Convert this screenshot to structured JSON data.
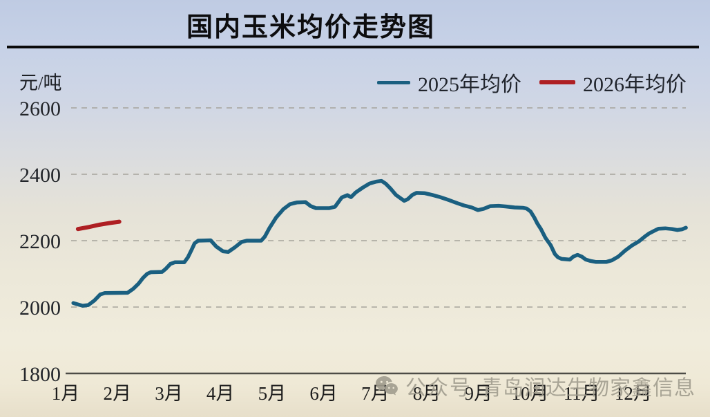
{
  "title": "国内玉米均价走势图",
  "y_axis_unit": "元/吨",
  "legend": [
    {
      "label": "2025年均价",
      "color": "#1a5f80"
    },
    {
      "label": "2026年均价",
      "color": "#ae1f23"
    }
  ],
  "watermark": {
    "icon": "wechat-icon",
    "label": "公众号",
    "text": "青岛润达生物家鑫信息",
    "color": "#a19d8f"
  },
  "chart_data": {
    "type": "line",
    "title": "国内玉米均价走势图",
    "ylabel": "元/吨",
    "ylim": [
      1800,
      2600
    ],
    "yticks": [
      1800,
      2000,
      2200,
      2400,
      2600
    ],
    "x_categories": [
      "1月",
      "2月",
      "3月",
      "4月",
      "5月",
      "6月",
      "7月",
      "8月",
      "9月",
      "10月",
      "11月",
      "12月"
    ],
    "grid": "dashed-horizontal",
    "legend_position": "top-right",
    "series": [
      {
        "name": "2025年均价",
        "color": "#1a5f80",
        "width": 5.5,
        "points": [
          [
            1.15,
            2012
          ],
          [
            1.24,
            2008
          ],
          [
            1.33,
            2004
          ],
          [
            1.44,
            2006
          ],
          [
            1.56,
            2020
          ],
          [
            1.67,
            2038
          ],
          [
            1.76,
            2042
          ],
          [
            2.2,
            2043
          ],
          [
            2.31,
            2055
          ],
          [
            2.41,
            2070
          ],
          [
            2.5,
            2088
          ],
          [
            2.58,
            2100
          ],
          [
            2.65,
            2105
          ],
          [
            2.87,
            2106
          ],
          [
            2.94,
            2115
          ],
          [
            3.03,
            2130
          ],
          [
            3.12,
            2135
          ],
          [
            3.3,
            2135
          ],
          [
            3.37,
            2150
          ],
          [
            3.44,
            2172
          ],
          [
            3.5,
            2192
          ],
          [
            3.57,
            2200
          ],
          [
            3.81,
            2201
          ],
          [
            3.92,
            2182
          ],
          [
            4.05,
            2168
          ],
          [
            4.15,
            2166
          ],
          [
            4.28,
            2180
          ],
          [
            4.41,
            2196
          ],
          [
            4.51,
            2200
          ],
          [
            4.79,
            2200
          ],
          [
            4.86,
            2212
          ],
          [
            4.95,
            2238
          ],
          [
            5.08,
            2270
          ],
          [
            5.22,
            2295
          ],
          [
            5.35,
            2310
          ],
          [
            5.48,
            2315
          ],
          [
            5.65,
            2316
          ],
          [
            5.75,
            2304
          ],
          [
            5.85,
            2298
          ],
          [
            6.11,
            2298
          ],
          [
            6.22,
            2302
          ],
          [
            6.35,
            2330
          ],
          [
            6.46,
            2337
          ],
          [
            6.53,
            2331
          ],
          [
            6.62,
            2345
          ],
          [
            6.76,
            2360
          ],
          [
            6.89,
            2372
          ],
          [
            7.02,
            2378
          ],
          [
            7.12,
            2380
          ],
          [
            7.2,
            2372
          ],
          [
            7.29,
            2358
          ],
          [
            7.4,
            2338
          ],
          [
            7.49,
            2328
          ],
          [
            7.56,
            2320
          ],
          [
            7.63,
            2325
          ],
          [
            7.72,
            2338
          ],
          [
            7.8,
            2344
          ],
          [
            7.96,
            2343
          ],
          [
            8.1,
            2338
          ],
          [
            8.26,
            2331
          ],
          [
            8.43,
            2322
          ],
          [
            8.59,
            2313
          ],
          [
            8.72,
            2306
          ],
          [
            8.87,
            2300
          ],
          [
            8.99,
            2292
          ],
          [
            9.1,
            2296
          ],
          [
            9.23,
            2304
          ],
          [
            9.39,
            2305
          ],
          [
            9.54,
            2303
          ],
          [
            9.7,
            2300
          ],
          [
            9.86,
            2299
          ],
          [
            9.93,
            2297
          ],
          [
            10.01,
            2288
          ],
          [
            10.08,
            2270
          ],
          [
            10.14,
            2252
          ],
          [
            10.21,
            2235
          ],
          [
            10.3,
            2208
          ],
          [
            10.4,
            2186
          ],
          [
            10.48,
            2160
          ],
          [
            10.54,
            2150
          ],
          [
            10.61,
            2145
          ],
          [
            10.77,
            2143
          ],
          [
            10.84,
            2152
          ],
          [
            10.92,
            2157
          ],
          [
            11.0,
            2152
          ],
          [
            11.08,
            2143
          ],
          [
            11.17,
            2139
          ],
          [
            11.27,
            2136
          ],
          [
            11.48,
            2136
          ],
          [
            11.59,
            2141
          ],
          [
            11.71,
            2152
          ],
          [
            11.84,
            2170
          ],
          [
            11.98,
            2186
          ],
          [
            12.11,
            2198
          ],
          [
            12.22,
            2212
          ],
          [
            12.31,
            2222
          ],
          [
            12.41,
            2230
          ],
          [
            12.49,
            2236
          ],
          [
            12.62,
            2237
          ],
          [
            12.75,
            2235
          ],
          [
            12.85,
            2232
          ],
          [
            12.94,
            2234
          ],
          [
            13.02,
            2239
          ]
        ]
      },
      {
        "name": "2026年均价",
        "color": "#ae1f23",
        "width": 6,
        "points": [
          [
            1.24,
            2235
          ],
          [
            1.45,
            2241
          ],
          [
            1.65,
            2248
          ],
          [
            1.85,
            2253
          ],
          [
            2.04,
            2257
          ]
        ]
      }
    ]
  }
}
